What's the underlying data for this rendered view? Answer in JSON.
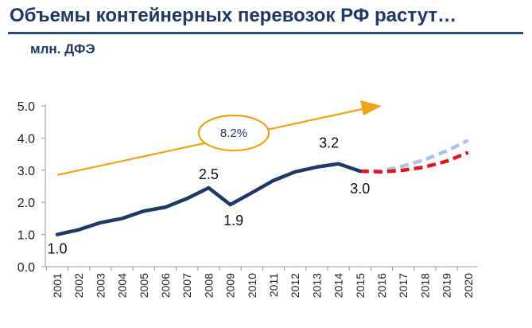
{
  "header": {
    "title": "Объемы контейнерных перевозок РФ растут…",
    "unit": "млн. ДФЭ"
  },
  "chart_data": {
    "type": "line",
    "title": "Объемы контейнерных перевозок РФ растут…",
    "ylabel": "млн. ДФЭ",
    "xlabel": "",
    "ylim": [
      0,
      5
    ],
    "yticks": [
      "0.0",
      "1.0",
      "2.0",
      "3.0",
      "4.0",
      "5.0"
    ],
    "categories": [
      "2001",
      "2002",
      "2003",
      "2004",
      "2005",
      "2006",
      "2007",
      "2008",
      "2009",
      "2010",
      "2011",
      "2012",
      "2013",
      "2014",
      "2015",
      "2016",
      "2017",
      "2018",
      "2019",
      "2020"
    ],
    "grid": false,
    "legend": "none",
    "series": [
      {
        "name": "",
        "color": "#1f3864",
        "style": "solid",
        "x": [
          "2001",
          "2002",
          "2003",
          "2004",
          "2005",
          "2006",
          "2007",
          "2008",
          "2009",
          "2010",
          "2011",
          "2012",
          "2013",
          "2014",
          "2015"
        ],
        "values": [
          1.0,
          1.15,
          1.37,
          1.5,
          1.73,
          1.85,
          2.12,
          2.45,
          1.93,
          2.3,
          2.68,
          2.95,
          3.1,
          3.2,
          2.97
        ]
      },
      {
        "name": "",
        "color": "#e0161b",
        "style": "dashed",
        "x": [
          "2015",
          "2016",
          "2017",
          "2018",
          "2019",
          "2020"
        ],
        "values": [
          2.97,
          2.95,
          3.0,
          3.1,
          3.28,
          3.55
        ]
      },
      {
        "name": "",
        "color": "#a9c6ea",
        "style": "dashed",
        "x": [
          "2015",
          "2016",
          "2017",
          "2018",
          "2019",
          "2020"
        ],
        "values": [
          2.97,
          2.98,
          3.13,
          3.33,
          3.6,
          3.93
        ]
      }
    ],
    "data_labels": [
      {
        "x": "2001",
        "y": 1.0,
        "text": "1.0"
      },
      {
        "x": "2008",
        "y": 2.45,
        "text": "2.5"
      },
      {
        "x": "2009",
        "y": 1.93,
        "text": "1.9"
      },
      {
        "x": "2014",
        "y": 3.2,
        "text": "3.2"
      },
      {
        "x": "2015",
        "y": 2.97,
        "text": "3.0"
      }
    ],
    "annotations": [
      {
        "type": "trend-arrow",
        "color": "#f0a315",
        "from": {
          "x": "2001",
          "y": 2.85
        },
        "to": {
          "x": "2016",
          "y": 5.0
        },
        "label": "8.2%"
      }
    ]
  }
}
